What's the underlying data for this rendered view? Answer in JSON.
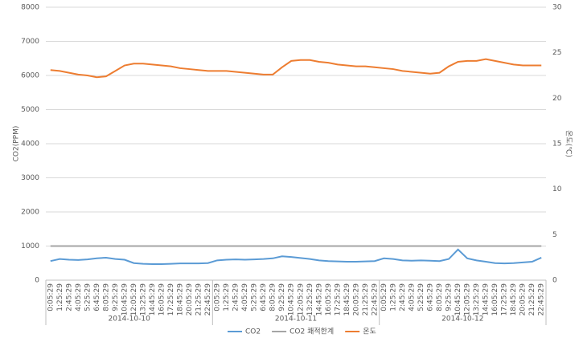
{
  "chart_data": {
    "type": "line",
    "y_label": "CO2(PPM)",
    "y2_label": "온도(℃)",
    "categories": [
      "0:05:29",
      "1:25:29",
      "2:45:29",
      "4:05:29",
      "5:25:29",
      "6:45:29",
      "8:05:29",
      "9:25:29",
      "10:45:29",
      "12:05:29",
      "13:25:29",
      "14:45:29",
      "16:05:29",
      "17:25:29",
      "18:45:29",
      "20:05:29",
      "21:25:29",
      "22:45:29",
      "0:05:29",
      "1:25:29",
      "2:45:29",
      "4:05:29",
      "5:25:29",
      "6:45:29",
      "8:05:29",
      "9:25:29",
      "10:45:29",
      "12:05:29",
      "13:25:29",
      "14:45:29",
      "16:05:29",
      "17:25:29",
      "18:45:29",
      "20:05:29",
      "21:25:29",
      "22:45:29",
      "0:05:29",
      "1:25:29",
      "2:45:29",
      "4:05:29",
      "5:25:29",
      "6:45:29",
      "8:05:29",
      "9:25:29",
      "10:45:29",
      "12:05:29",
      "13:25:29",
      "14:45:29",
      "16:05:29",
      "17:25:29",
      "18:45:29",
      "20:05:29",
      "21:25:29",
      "22:45:29"
    ],
    "groups": [
      "2014-10-10",
      "2014-10-11",
      "2014-10-12"
    ],
    "series": [
      {
        "name": "CO2",
        "color": "#5b9bd5",
        "values": [
          560,
          620,
          600,
          590,
          610,
          640,
          660,
          620,
          600,
          500,
          480,
          470,
          470,
          480,
          490,
          490,
          490,
          500,
          580,
          600,
          610,
          600,
          610,
          620,
          640,
          700,
          680,
          650,
          620,
          580,
          560,
          550,
          540,
          540,
          550,
          560,
          640,
          620,
          580,
          570,
          580,
          570,
          560,
          620,
          900,
          640,
          580,
          540,
          500,
          490,
          500,
          520,
          540,
          660
        ]
      },
      {
        "name": "CO2 쾌적한계",
        "color": "#a5a5a5",
        "values": [
          1000,
          1000,
          1000,
          1000,
          1000,
          1000,
          1000,
          1000,
          1000,
          1000,
          1000,
          1000,
          1000,
          1000,
          1000,
          1000,
          1000,
          1000,
          1000,
          1000,
          1000,
          1000,
          1000,
          1000,
          1000,
          1000,
          1000,
          1000,
          1000,
          1000,
          1000,
          1000,
          1000,
          1000,
          1000,
          1000,
          1000,
          1000,
          1000,
          1000,
          1000,
          1000,
          1000,
          1000,
          1000,
          1000,
          1000,
          1000,
          1000,
          1000,
          1000,
          1000,
          1000,
          1000
        ]
      },
      {
        "name": "온도",
        "color": "#ed7d31",
        "axis": "y2",
        "values": [
          23.1,
          23.0,
          22.8,
          22.6,
          22.5,
          22.3,
          22.4,
          23.0,
          23.6,
          23.8,
          23.8,
          23.7,
          23.6,
          23.5,
          23.3,
          23.2,
          23.1,
          23.0,
          23.0,
          23.0,
          22.9,
          22.8,
          22.7,
          22.6,
          22.6,
          23.4,
          24.1,
          24.2,
          24.2,
          24.0,
          23.9,
          23.7,
          23.6,
          23.5,
          23.5,
          23.4,
          23.3,
          23.2,
          23.0,
          22.9,
          22.8,
          22.7,
          22.8,
          23.5,
          24.0,
          24.1,
          24.1,
          24.3,
          24.1,
          23.9,
          23.7,
          23.6,
          23.6,
          23.6
        ]
      }
    ],
    "ylim": [
      0,
      8000
    ],
    "yticks": [
      0,
      1000,
      2000,
      3000,
      4000,
      5000,
      6000,
      7000,
      8000
    ],
    "y2lim": [
      0,
      30
    ],
    "y2ticks": [
      0,
      5,
      10,
      15,
      20,
      25,
      30
    ],
    "grid": true,
    "legend": "bottom"
  }
}
